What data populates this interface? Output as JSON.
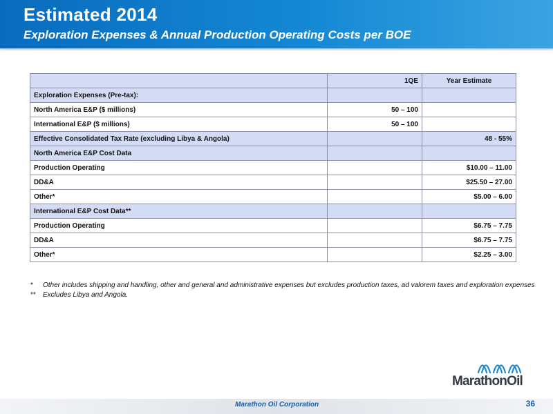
{
  "header": {
    "title": "Estimated 2014",
    "subtitle": "Exploration Expenses & Annual Production Operating Costs per BOE"
  },
  "table": {
    "columns": [
      "",
      "1QE",
      "Year Estimate"
    ],
    "rows": [
      {
        "label": "Exploration Expenses (Pre-tax):",
        "q1": "",
        "year": ""
      },
      {
        "label": "North America E&P ($ millions)",
        "q1": "50 – 100",
        "year": ""
      },
      {
        "label": "International  E&P ($ millions)",
        "q1": "50 – 100",
        "year": ""
      },
      {
        "label": "Effective Consolidated Tax Rate (excluding Libya & Angola)",
        "q1": "",
        "year": "48 -  55%"
      },
      {
        "label": "North America E&P Cost Data",
        "q1": "",
        "year": ""
      },
      {
        "label": "Production Operating",
        "q1": "",
        "year": "$10.00 – 11.00"
      },
      {
        "label": "DD&A",
        "q1": "",
        "year": "$25.50 – 27.00"
      },
      {
        "label": "Other*",
        "q1": "",
        "year": "$5.00 – 6.00"
      },
      {
        "label": "International E&P Cost Data**",
        "q1": "",
        "year": ""
      },
      {
        "label": "Production Operating",
        "q1": "",
        "year": "$6.75 – 7.75"
      },
      {
        "label": "DD&A",
        "q1": "",
        "year": "$6.75 – 7.75"
      },
      {
        "label": "Other*",
        "q1": "",
        "year": "$2.25 – 3.00"
      }
    ]
  },
  "footnotes": [
    {
      "mark": "*",
      "text": "Other includes shipping and handling, other and general and administrative expenses but excludes production taxes, ad valorem taxes and exploration expenses"
    },
    {
      "mark": "**",
      "text": "Excludes Libya and Angola."
    }
  ],
  "footer": {
    "company": "Marathon Oil Corporation",
    "page_number": "36"
  },
  "logo": {
    "text": "MarathonOil",
    "icon": "marathon-wave-logo-icon"
  },
  "colors": {
    "header_blue": "#1488d4",
    "row_shade": "#d4dbf5",
    "footer_text": "#1a5fa8"
  }
}
